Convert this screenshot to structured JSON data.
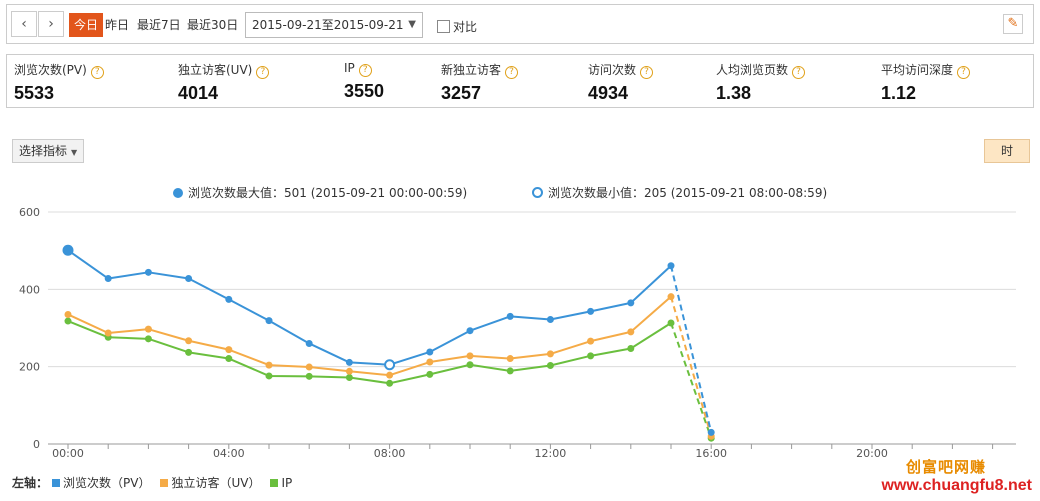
{
  "toolbar": {
    "prev_icon": "chevron-left-icon",
    "next_icon": "chevron-right-icon",
    "today": "今日",
    "yesterday": "昨日",
    "last7": "最近7日",
    "last30": "最近30日",
    "date_range": "2015-09-21至2015-09-21",
    "compare": "对比",
    "pin_icon": "pin-icon"
  },
  "metrics": [
    {
      "label": "浏览次数(PV)",
      "value": "5533"
    },
    {
      "label": "独立访客(UV)",
      "value": "4014"
    },
    {
      "label": "IP",
      "value": "3550"
    },
    {
      "label": "新独立访客",
      "value": "3257"
    },
    {
      "label": "访问次数",
      "value": "4934"
    },
    {
      "label": "人均浏览页数",
      "value": "1.38"
    },
    {
      "label": "平均访问深度",
      "value": "1.12"
    }
  ],
  "controls": {
    "select_metric": "选择指标",
    "granularity": "时"
  },
  "chart_legend": {
    "max_label": "浏览次数最大值：501 (2015-09-21 00:00-00:59)",
    "min_label": "浏览次数最小值：205 (2015-09-21 08:00-08:59)"
  },
  "bottom_legend": {
    "axis_label": "左轴：",
    "series": [
      "浏览次数（PV）",
      "独立访客（UV）",
      "IP"
    ]
  },
  "watermark": {
    "line1": "创富吧网赚",
    "line2": "www.chuangfu8.net"
  },
  "colors": {
    "pv": "#3a93d8",
    "uv": "#f5ab47",
    "ip": "#6abf3e",
    "accent": "#e2551b"
  },
  "chart_data": {
    "type": "line",
    "x": [
      "00:00",
      "01:00",
      "02:00",
      "03:00",
      "04:00",
      "05:00",
      "06:00",
      "07:00",
      "08:00",
      "09:00",
      "10:00",
      "11:00",
      "12:00",
      "13:00",
      "14:00",
      "15:00",
      "16:00"
    ],
    "x_ticks": [
      "00:00",
      "04:00",
      "08:00",
      "12:00",
      "16:00",
      "20:00"
    ],
    "y_ticks": [
      0,
      200,
      400,
      600
    ],
    "ylim": [
      0,
      600
    ],
    "xlim_hours": [
      0,
      23
    ],
    "series": [
      {
        "name": "浏览次数（PV）",
        "color": "#3a93d8",
        "values": [
          501,
          428,
          444,
          428,
          374,
          319,
          260,
          211,
          205,
          238,
          293,
          330,
          322,
          343,
          365,
          461,
          30
        ]
      },
      {
        "name": "独立访客（UV）",
        "color": "#f5ab47",
        "values": [
          335,
          287,
          297,
          267,
          244,
          204,
          199,
          188,
          178,
          212,
          228,
          221,
          233,
          266,
          290,
          381,
          20
        ]
      },
      {
        "name": "IP",
        "color": "#6abf3e",
        "values": [
          318,
          276,
          272,
          237,
          221,
          176,
          175,
          172,
          157,
          180,
          205,
          189,
          203,
          228,
          247,
          313,
          15
        ]
      }
    ],
    "dashed_last_segment": true,
    "max_point": {
      "series": 0,
      "index": 0,
      "value": 501
    },
    "min_point": {
      "series": 0,
      "index": 8,
      "value": 205
    }
  }
}
